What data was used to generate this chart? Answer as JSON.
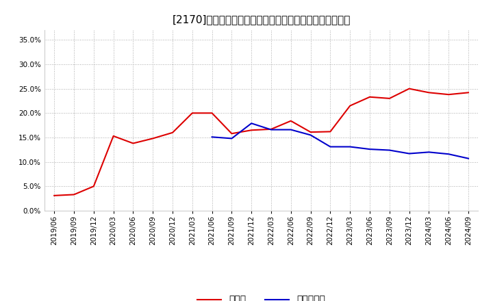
{
  "title": "[2170]　現須金、有利子負債の総資産に対する比率の推移",
  "x_labels": [
    "2019/06",
    "2019/09",
    "2019/12",
    "2020/03",
    "2020/06",
    "2020/09",
    "2020/12",
    "2021/03",
    "2021/06",
    "2021/09",
    "2021/12",
    "2022/03",
    "2022/06",
    "2022/09",
    "2022/12",
    "2023/03",
    "2023/06",
    "2023/09",
    "2023/12",
    "2024/03",
    "2024/06",
    "2024/09"
  ],
  "cash_values": [
    0.031,
    0.033,
    0.05,
    0.153,
    0.138,
    0.148,
    0.16,
    0.2,
    0.2,
    0.158,
    0.165,
    0.167,
    0.184,
    0.161,
    0.162,
    0.215,
    0.233,
    0.23,
    0.25,
    0.242,
    0.238,
    0.242
  ],
  "debt_values": [
    null,
    null,
    null,
    null,
    null,
    null,
    null,
    null,
    0.151,
    0.148,
    0.179,
    0.166,
    0.166,
    0.155,
    0.131,
    0.131,
    0.126,
    0.124,
    0.117,
    0.12,
    0.116,
    0.107
  ],
  "cash_color": "#dd0000",
  "debt_color": "#0000cc",
  "ylim": [
    0.0,
    0.37
  ],
  "yticks": [
    0.0,
    0.05,
    0.1,
    0.15,
    0.2,
    0.25,
    0.3,
    0.35
  ],
  "legend_cash": "現須金",
  "legend_debt": "有利子負債",
  "bg_color": "#ffffff",
  "plot_bg_color": "#ffffff",
  "grid_color": "#aaaaaa",
  "title_fontsize": 11,
  "tick_fontsize": 7.5,
  "legend_fontsize": 10
}
